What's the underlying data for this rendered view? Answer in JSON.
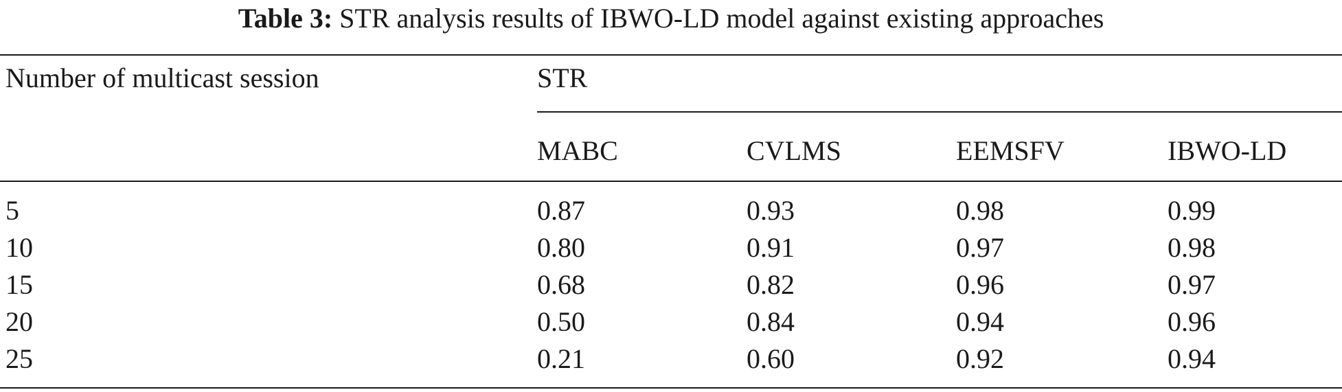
{
  "caption": {
    "label": "Table 3:",
    "text": "STR analysis results of IBWO-LD model against existing approaches"
  },
  "table": {
    "row_header": "Number of multicast session",
    "group_header": "STR",
    "columns": [
      "MABC",
      "CVLMS",
      "EEMSFV",
      "IBWO-LD"
    ],
    "rows": [
      {
        "session": "5",
        "values": [
          "0.87",
          "0.93",
          "0.98",
          "0.99"
        ]
      },
      {
        "session": "10",
        "values": [
          "0.80",
          "0.91",
          "0.97",
          "0.98"
        ]
      },
      {
        "session": "15",
        "values": [
          "0.68",
          "0.82",
          "0.96",
          "0.97"
        ]
      },
      {
        "session": "20",
        "values": [
          "0.50",
          "0.84",
          "0.94",
          "0.96"
        ]
      },
      {
        "session": "25",
        "values": [
          "0.21",
          "0.60",
          "0.92",
          "0.94"
        ]
      }
    ]
  }
}
